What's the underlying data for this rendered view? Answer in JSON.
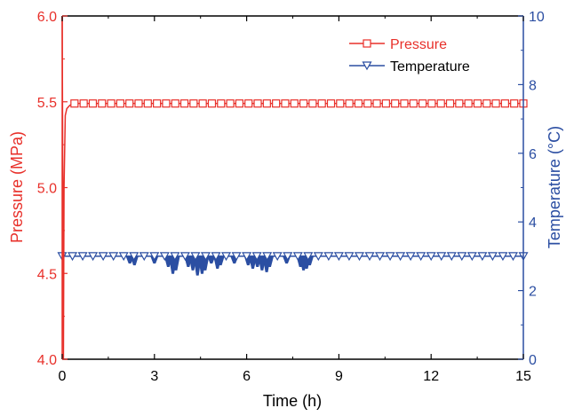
{
  "chart_data": {
    "type": "line",
    "xlabel": "Time (h)",
    "ylabel_left": "Pressure (MPa)",
    "ylabel_right": "Temperature (°C)",
    "xlim": [
      0,
      15
    ],
    "ylim_left": [
      4.0,
      6.0
    ],
    "ylim_right": [
      0,
      10
    ],
    "x_ticks": [
      0,
      3,
      6,
      9,
      12,
      15
    ],
    "y_left_ticks": [
      "4.0",
      "4.5",
      "5.0",
      "5.5",
      "6.0"
    ],
    "y_right_ticks": [
      "0",
      "2",
      "4",
      "6",
      "8",
      "10"
    ],
    "grid": false,
    "legend_position": "top-right",
    "series": [
      {
        "name": "Pressure",
        "axis": "left",
        "color": "#e8302a",
        "marker": "square",
        "x": [
          0,
          0.04,
          0.06,
          0.1,
          0.15,
          0.25,
          0.4,
          15
        ],
        "y": [
          6.0,
          4.0,
          5.0,
          5.42,
          5.46,
          5.48,
          5.49,
          5.49
        ]
      },
      {
        "name": "Temperature",
        "axis": "right",
        "color": "#2b4ea2",
        "marker": "triangle-down",
        "baseline": 3.0,
        "x": [
          0,
          15
        ],
        "y": [
          3.0,
          3.0
        ],
        "dips": [
          {
            "x": 2.2,
            "min": 2.8
          },
          {
            "x": 2.35,
            "min": 2.75
          },
          {
            "x": 3.0,
            "min": 2.8
          },
          {
            "x": 3.45,
            "min": 2.7
          },
          {
            "x": 3.6,
            "min": 2.5
          },
          {
            "x": 3.7,
            "min": 2.6
          },
          {
            "x": 4.1,
            "min": 2.7
          },
          {
            "x": 4.25,
            "min": 2.6
          },
          {
            "x": 4.4,
            "min": 2.45
          },
          {
            "x": 4.55,
            "min": 2.5
          },
          {
            "x": 4.65,
            "min": 2.6
          },
          {
            "x": 4.85,
            "min": 2.8
          },
          {
            "x": 5.05,
            "min": 2.65
          },
          {
            "x": 5.15,
            "min": 2.75
          },
          {
            "x": 5.6,
            "min": 2.8
          },
          {
            "x": 6.05,
            "min": 2.75
          },
          {
            "x": 6.2,
            "min": 2.65
          },
          {
            "x": 6.35,
            "min": 2.7
          },
          {
            "x": 6.5,
            "min": 2.6
          },
          {
            "x": 6.65,
            "min": 2.55
          },
          {
            "x": 6.75,
            "min": 2.7
          },
          {
            "x": 7.3,
            "min": 2.8
          },
          {
            "x": 7.75,
            "min": 2.7
          },
          {
            "x": 7.85,
            "min": 2.6
          },
          {
            "x": 7.95,
            "min": 2.65
          },
          {
            "x": 8.05,
            "min": 2.75
          }
        ]
      }
    ]
  }
}
